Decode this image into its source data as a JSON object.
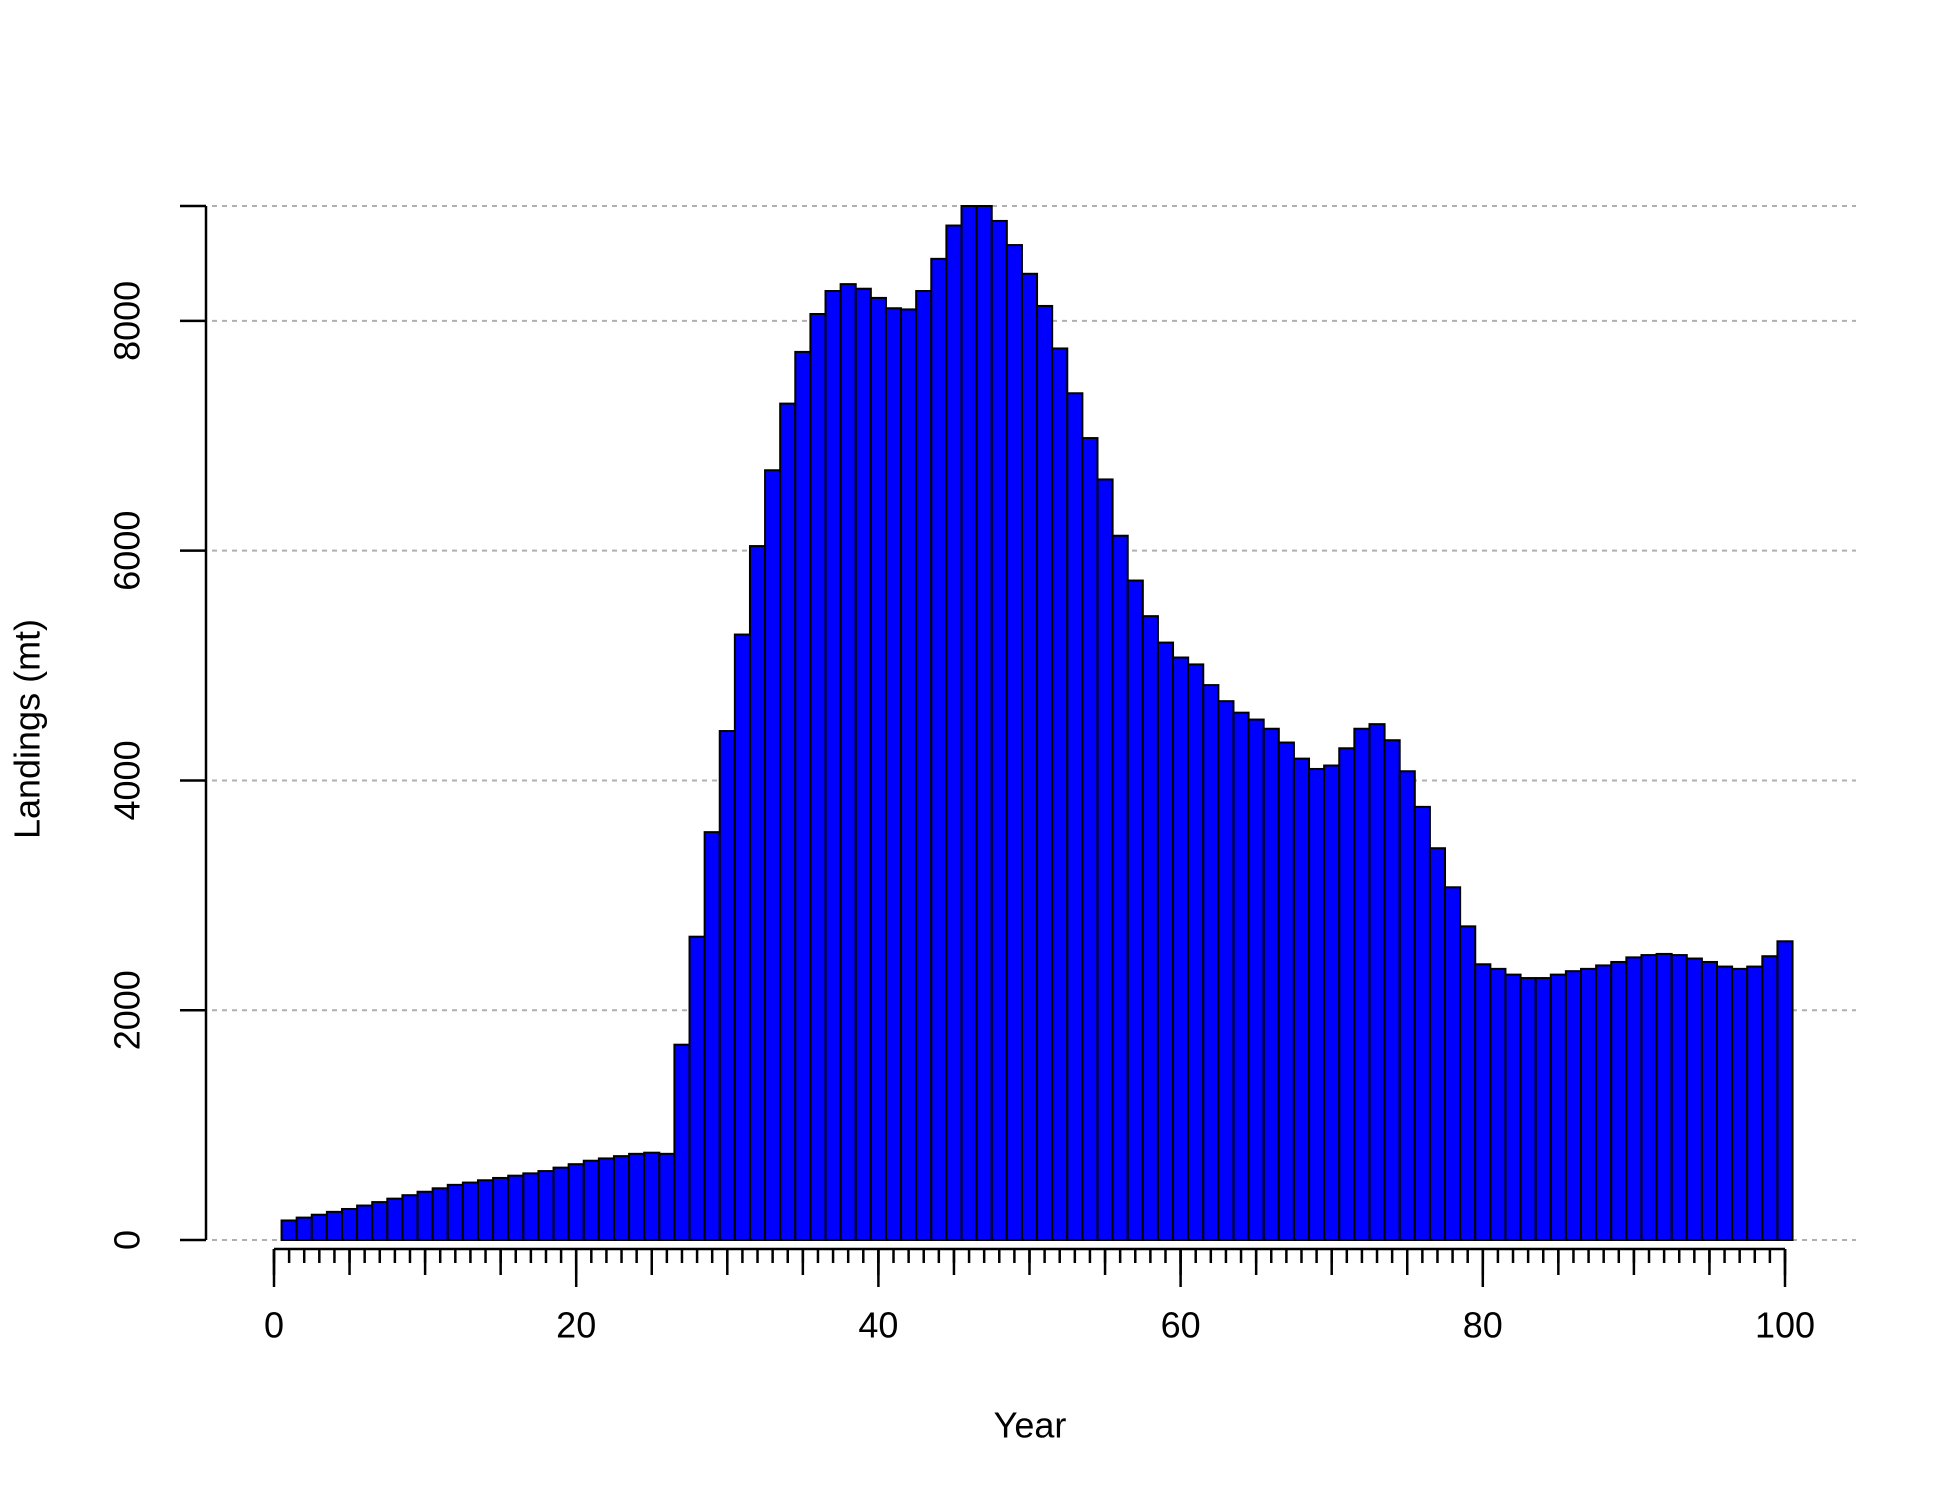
{
  "chart_data": {
    "type": "bar",
    "xlabel": "Year",
    "ylabel": "Landings (mt)",
    "x": [
      1,
      2,
      3,
      4,
      5,
      6,
      7,
      8,
      9,
      10,
      11,
      12,
      13,
      14,
      15,
      16,
      17,
      18,
      19,
      20,
      21,
      22,
      23,
      24,
      25,
      26,
      27,
      28,
      29,
      30,
      31,
      32,
      33,
      34,
      35,
      36,
      37,
      38,
      39,
      40,
      41,
      42,
      43,
      44,
      45,
      46,
      47,
      48,
      49,
      50,
      51,
      52,
      53,
      54,
      55,
      56,
      57,
      58,
      59,
      60,
      61,
      62,
      63,
      64,
      65,
      66,
      67,
      68,
      69,
      70,
      71,
      72,
      73,
      74,
      75,
      76,
      77,
      78,
      79,
      80,
      81,
      82,
      83,
      84,
      85,
      86,
      87,
      88,
      89,
      90,
      91,
      92,
      93,
      94,
      95,
      96,
      97,
      98,
      99,
      100
    ],
    "values": [
      170,
      195,
      220,
      245,
      270,
      300,
      330,
      360,
      390,
      420,
      450,
      480,
      500,
      520,
      540,
      560,
      580,
      600,
      630,
      660,
      690,
      710,
      730,
      750,
      760,
      750,
      1700,
      2640,
      3550,
      4430,
      5270,
      6040,
      6700,
      7280,
      7730,
      8060,
      8260,
      8320,
      8280,
      8200,
      8110,
      8100,
      8260,
      8540,
      8830,
      9000,
      9000,
      8870,
      8660,
      8410,
      8130,
      7760,
      7370,
      6980,
      6620,
      6130,
      5740,
      5430,
      5200,
      5070,
      5010,
      4830,
      4690,
      4590,
      4530,
      4450,
      4330,
      4190,
      4100,
      4130,
      4280,
      4450,
      4490,
      4350,
      4080,
      3770,
      3410,
      3070,
      2730,
      2400,
      2360,
      2310,
      2280,
      2280,
      2310,
      2340,
      2360,
      2390,
      2420,
      2460,
      2480,
      2490,
      2480,
      2450,
      2420,
      2380,
      2360,
      2380,
      2470,
      2600
    ],
    "color": "#0000ff",
    "xlim": [
      0,
      100
    ],
    "xticks": [
      0,
      20,
      40,
      60,
      80,
      100
    ],
    "xticks_medium": [
      0,
      5,
      10,
      15,
      20,
      25,
      30,
      35,
      40,
      45,
      50,
      55,
      60,
      65,
      70,
      75,
      80,
      85,
      90,
      95,
      100
    ],
    "xticks_minor": [
      0,
      1,
      2,
      3,
      4,
      5,
      6,
      7,
      8,
      9,
      10,
      11,
      12,
      13,
      14,
      15,
      16,
      17,
      18,
      19,
      20,
      21,
      22,
      23,
      24,
      25,
      26,
      27,
      28,
      29,
      30,
      31,
      32,
      33,
      34,
      35,
      36,
      37,
      38,
      39,
      40,
      41,
      42,
      43,
      44,
      45,
      46,
      47,
      48,
      49,
      50,
      51,
      52,
      53,
      54,
      55,
      56,
      57,
      58,
      59,
      60,
      61,
      62,
      63,
      64,
      65,
      66,
      67,
      68,
      69,
      70,
      71,
      72,
      73,
      74,
      75,
      76,
      77,
      78,
      79,
      80,
      81,
      82,
      83,
      84,
      85,
      86,
      87,
      88,
      89,
      90,
      91,
      92,
      93,
      94,
      95,
      96,
      97,
      98,
      99,
      100
    ],
    "ylim": [
      0,
      9000
    ],
    "yticks": [
      0,
      2000,
      4000,
      6000,
      8000
    ],
    "grid": true
  }
}
